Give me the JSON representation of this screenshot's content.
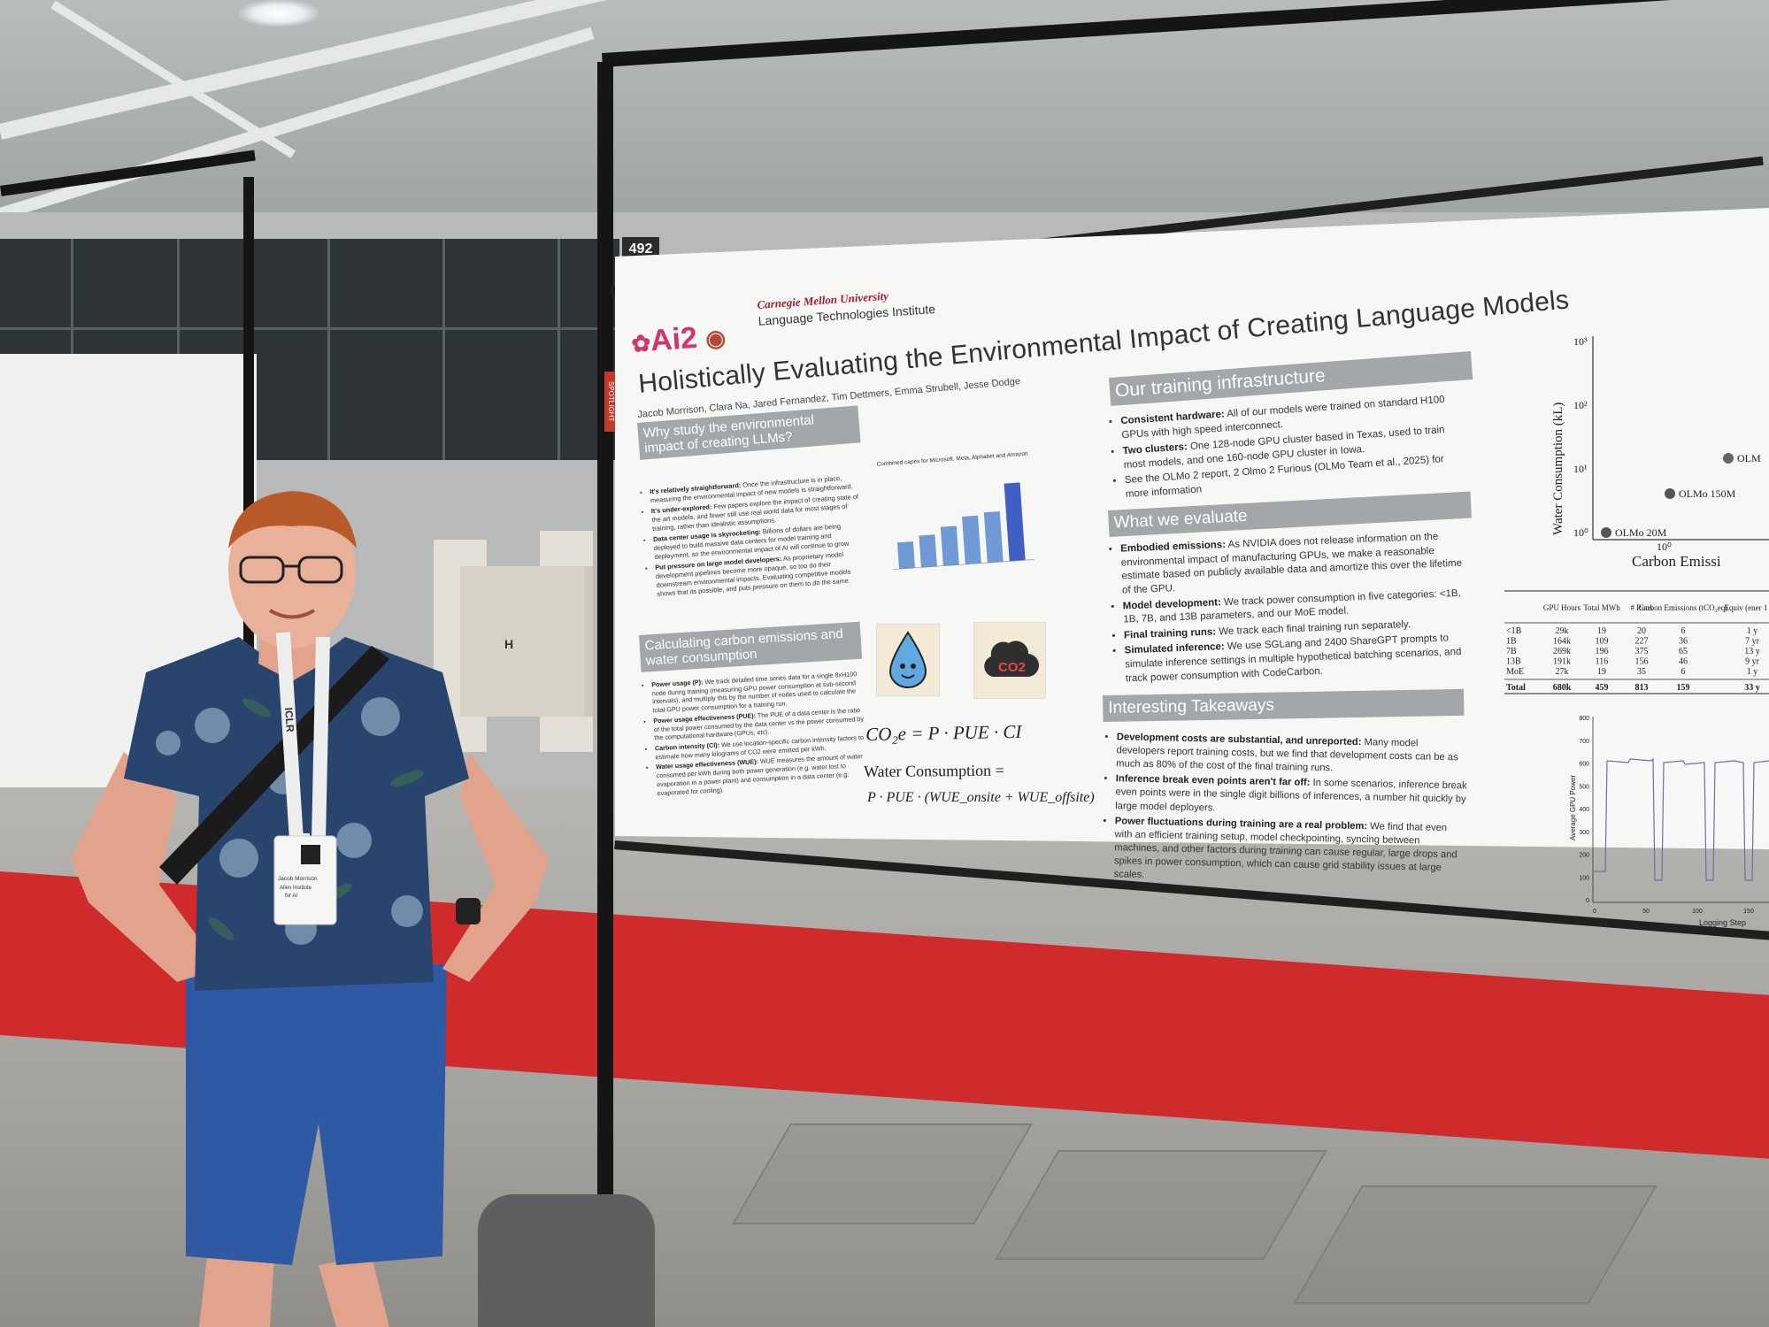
{
  "booth_number": "492",
  "spotlight_tag": "SPOTLIGHT",
  "poster": {
    "title": "Holistically Evaluating the Environmental Impact of Creating Language Models",
    "authors": "Jacob Morrison, Clara Na, Jared Fernandez, Tim Dettmers, Emma Strubell, Jesse Dodge",
    "logo_ai2": "Ai2",
    "logo_cmu_university": "Carnegie Mellon University",
    "logo_cmu_institute": "Language Technologies Institute",
    "section_why": {
      "heading": "Why study the environmental impact of creating LLMs?",
      "bullets": [
        {
          "bold": "It's relatively straightforward:",
          "text": " Once the infrastructure is in place, measuring the environmental impact of new models is straightforward."
        },
        {
          "bold": "It's under-explored:",
          "text": " Few papers explore the impact of creating state of the art models, and fewer still use real world data for most stages of training, rather than idealistic assumptions."
        },
        {
          "bold": "Data center usage is skyrocketing:",
          "text": " Billions of dollars are being deployed to build massive data centers for model training and deployment, so the environmental impact of AI will continue to grow."
        },
        {
          "bold": "Put pressure on large model developers:",
          "text": " As proprietary model development pipelines become more opaque, so too do their downstream environmental impacts. Evaluating competitive models shows that its possible, and puts pressure on them to do the same."
        }
      ]
    },
    "capex_chart": {
      "title": "Combined capex for Microsoft, Meta, Alphabet and Amazon"
    },
    "section_calc": {
      "heading": "Calculating carbon emissions and water consumption",
      "bullets": [
        {
          "bold": "Power usage (P):",
          "text": " We track detailed time series data for a single 8xH100 node during training (measuring GPU power consumption at sub-second intervals), and multiply this by the number of nodes used to calculate the total GPU power consumption for a training run."
        },
        {
          "bold": "Power usage effectiveness (PUE):",
          "text": " The PUE of a data center is the ratio of the total power consumed by the data center vs the power consumed by the computational hardware (GPUs, etc)."
        },
        {
          "bold": "Carbon intensity (CI):",
          "text": " We use location-specific carbon intensity factors to estimate how many kilograms of CO2 were emitted per kWh."
        },
        {
          "bold": "Water usage effectiveness (WUE):",
          "text": " WUE measures the amount of water consumed per kWh during both power generation (e.g. water lost to evaporation in a power plant) and consumption in a data center (e.g. evaporated for cooling)."
        }
      ]
    },
    "mascot_co2_label": "CO2",
    "equation_co2": "CO₂e = P · PUE · CI",
    "equation_water_label": "Water Consumption =",
    "equation_water_expr": "P · PUE · (WUE_onsite + WUE_offsite)",
    "section_infra": {
      "heading": "Our training infrastructure",
      "bullets": [
        {
          "bold": "Consistent hardware:",
          "text": " All of our models were trained on standard H100 GPUs with high speed interconnect."
        },
        {
          "bold": "Two clusters:",
          "text": " One 128-node GPU cluster based in Texas, used to train most models, and one 160-node GPU cluster in Iowa."
        },
        {
          "bold": "",
          "text": "See the OLMo 2 report, 2 Olmo 2 Furious (OLMo Team et al., 2025) for more information"
        }
      ]
    },
    "section_evaluate": {
      "heading": "What we evaluate",
      "bullets": [
        {
          "bold": "Embodied emissions:",
          "text": " As NVIDIA does not release information on the environmental impact of manufacturing GPUs, we make a reasonable estimate based on publicly available data and amortize this over the lifetime of the GPU."
        },
        {
          "bold": "Model development:",
          "text": " We track power consumption in five categories: <1B, 1B, 7B, and 13B parameters, and our MoE model."
        },
        {
          "bold": "Final training runs:",
          "text": " We track each final training run separately."
        },
        {
          "bold": "Simulated inference:",
          "text": " We use SGLang and 2400 ShareGPT prompts to simulate inference settings in multiple hypothetical batching scenarios, and track power consumption with CodeCarbon."
        }
      ]
    },
    "section_takeaways": {
      "heading": "Interesting Takeaways",
      "bullets": [
        {
          "bold": "Development costs are substantial, and unreported:",
          "text": " Many model developers report training costs, but we find that development costs can be as much as 80% of the cost of the final training runs."
        },
        {
          "bold": "Inference break even points aren't far off:",
          "text": " In some scenarios, inference break even points were in the single digit billions of inferences, a number hit quickly by large model deployers."
        },
        {
          "bold": "Power fluctuations during training are a real problem:",
          "text": " We find that even with an efficient training setup, model checkpointing, syncing between machines, and other factors during training can cause regular, large drops and spikes in power consumption, which can cause grid stability issues at large scales."
        }
      ]
    },
    "scatter": {
      "ylabel": "Water Consumption (kL)",
      "xlabel": "Carbon Emissi",
      "yticks": [
        "10³",
        "10²",
        "10¹",
        "10⁰"
      ],
      "xtick": "10⁰",
      "points": [
        {
          "label": "OLMo 20M",
          "log_x": -0.2,
          "log_y": 0.0
        },
        {
          "label": "OLMo 150M",
          "log_x": 0.0,
          "log_y": 0.6
        },
        {
          "label": "OLM",
          "log_x": 0.5,
          "log_y": 1.15
        }
      ]
    },
    "table": {
      "headers": [
        "",
        "GPU Hours",
        "Total MWh",
        "# Runs",
        "Carbon Emissions (tCO₂eq)",
        "Equiv (ener 1 hor"
      ],
      "rows": [
        [
          "<1B",
          "29k",
          "19",
          "20",
          "6",
          "1 y"
        ],
        [
          "1B",
          "164k",
          "109",
          "227",
          "36",
          "7 yr"
        ],
        [
          "7B",
          "269k",
          "196",
          "375",
          "65",
          "13 y"
        ],
        [
          "13B",
          "191k",
          "116",
          "156",
          "46",
          "9 yr"
        ],
        [
          "MoE",
          "27k",
          "19",
          "35",
          "6",
          "1 y"
        ]
      ],
      "total": [
        "Total",
        "680k",
        "459",
        "813",
        "159",
        "33 y"
      ]
    },
    "power_plot": {
      "ylabel": "Average GPU Power",
      "xlabel": "Logging Step",
      "yticks": [
        "800",
        "700",
        "600",
        "500",
        "400",
        "300",
        "200",
        "100",
        "0"
      ],
      "xticks": [
        "0",
        "50",
        "100",
        "150"
      ]
    }
  },
  "badge": {
    "name": "Jacob Morrison",
    "org_line1": "Allen Institute",
    "org_line2": "for AI"
  },
  "lanyard_text": "ICLR",
  "sign_letter": "H"
}
